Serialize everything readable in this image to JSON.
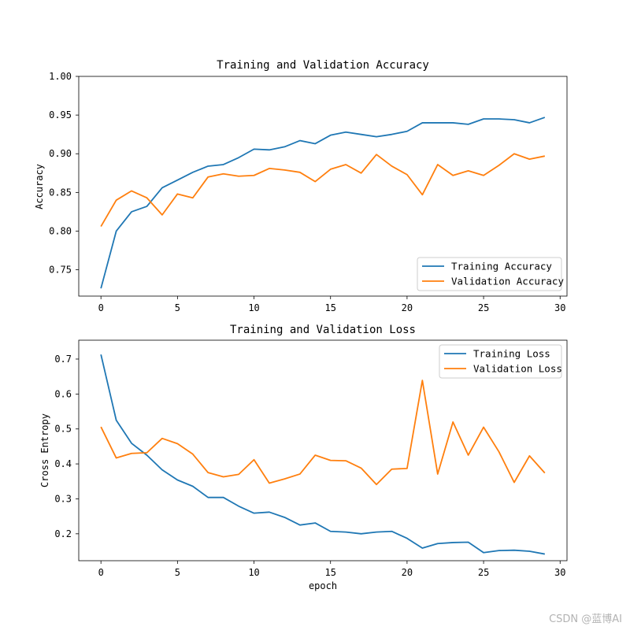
{
  "watermark": "CSDN @蓝博AI",
  "chart_data": [
    {
      "type": "line",
      "title": "Training and Validation Accuracy",
      "xlabel": "",
      "ylabel": "Accuracy",
      "xlim": [
        -1.45,
        30.45
      ],
      "ylim": [
        0.716,
        1.0
      ],
      "xticks": [
        0,
        5,
        10,
        15,
        20,
        25,
        30
      ],
      "yticks": [
        0.75,
        0.8,
        0.85,
        0.9,
        0.95,
        1.0
      ],
      "ytick_decimals": 2,
      "legend_position": "lower-right",
      "x": [
        0,
        1,
        2,
        3,
        4,
        5,
        6,
        7,
        8,
        9,
        10,
        11,
        12,
        13,
        14,
        15,
        16,
        17,
        18,
        19,
        20,
        21,
        22,
        23,
        24,
        25,
        26,
        27,
        28,
        29
      ],
      "series": [
        {
          "name": "Training Accuracy",
          "color": "#1f77b4",
          "values": [
            0.726,
            0.8,
            0.825,
            0.832,
            0.856,
            0.866,
            0.876,
            0.884,
            0.886,
            0.895,
            0.906,
            0.905,
            0.909,
            0.917,
            0.913,
            0.924,
            0.928,
            0.925,
            0.922,
            0.925,
            0.929,
            0.94,
            0.94,
            0.94,
            0.938,
            0.945,
            0.945,
            0.944,
            0.94,
            0.947
          ]
        },
        {
          "name": "Validation Accuracy",
          "color": "#ff7f0e",
          "values": [
            0.806,
            0.84,
            0.852,
            0.843,
            0.821,
            0.848,
            0.843,
            0.87,
            0.874,
            0.871,
            0.872,
            0.881,
            0.879,
            0.876,
            0.864,
            0.88,
            0.886,
            0.875,
            0.899,
            0.884,
            0.873,
            0.847,
            0.886,
            0.872,
            0.878,
            0.872,
            0.885,
            0.9,
            0.893,
            0.897
          ]
        }
      ]
    },
    {
      "type": "line",
      "title": "Training and Validation Loss",
      "xlabel": "epoch",
      "ylabel": "Cross Entropy",
      "xlim": [
        -1.45,
        30.45
      ],
      "ylim": [
        0.123,
        0.754
      ],
      "xticks": [
        0,
        5,
        10,
        15,
        20,
        25,
        30
      ],
      "yticks": [
        0.2,
        0.3,
        0.4,
        0.5,
        0.6,
        0.7
      ],
      "ytick_decimals": 1,
      "legend_position": "upper-right",
      "x": [
        0,
        1,
        2,
        3,
        4,
        5,
        6,
        7,
        8,
        9,
        10,
        11,
        12,
        13,
        14,
        15,
        16,
        17,
        18,
        19,
        20,
        21,
        22,
        23,
        24,
        25,
        26,
        27,
        28,
        29
      ],
      "series": [
        {
          "name": "Training Loss",
          "color": "#1f77b4",
          "values": [
            0.713,
            0.525,
            0.459,
            0.425,
            0.383,
            0.354,
            0.336,
            0.304,
            0.304,
            0.279,
            0.259,
            0.262,
            0.247,
            0.225,
            0.231,
            0.207,
            0.205,
            0.2,
            0.205,
            0.207,
            0.187,
            0.159,
            0.172,
            0.175,
            0.176,
            0.146,
            0.152,
            0.153,
            0.15,
            0.142
          ]
        },
        {
          "name": "Validation Loss",
          "color": "#ff7f0e",
          "values": [
            0.506,
            0.417,
            0.43,
            0.432,
            0.473,
            0.458,
            0.428,
            0.375,
            0.363,
            0.37,
            0.412,
            0.345,
            0.357,
            0.371,
            0.425,
            0.41,
            0.409,
            0.388,
            0.341,
            0.385,
            0.387,
            0.639,
            0.371,
            0.52,
            0.425,
            0.505,
            0.435,
            0.347,
            0.423,
            0.374
          ]
        }
      ]
    }
  ]
}
